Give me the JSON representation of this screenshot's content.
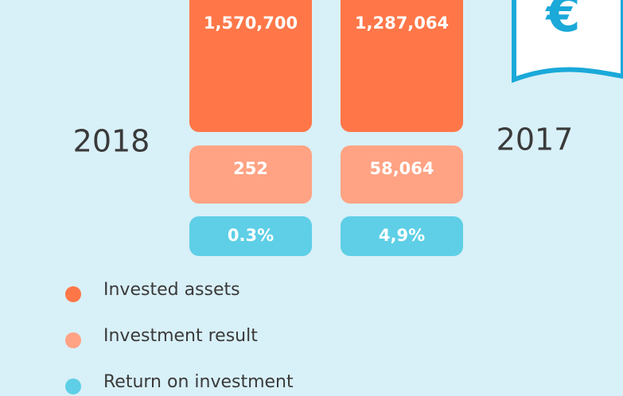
{
  "icon": "€",
  "years": [
    "2018",
    "2017"
  ],
  "columns": [
    {
      "invested_assets": "1,570,700",
      "investment_result": "252",
      "return_on_investment": "0.3%"
    },
    {
      "invested_assets": "1,287,064",
      "investment_result": "58,064",
      "return_on_investment": "4,9%"
    }
  ],
  "legend": [
    "Invested assets",
    "Investment result",
    "Return on investment"
  ]
}
